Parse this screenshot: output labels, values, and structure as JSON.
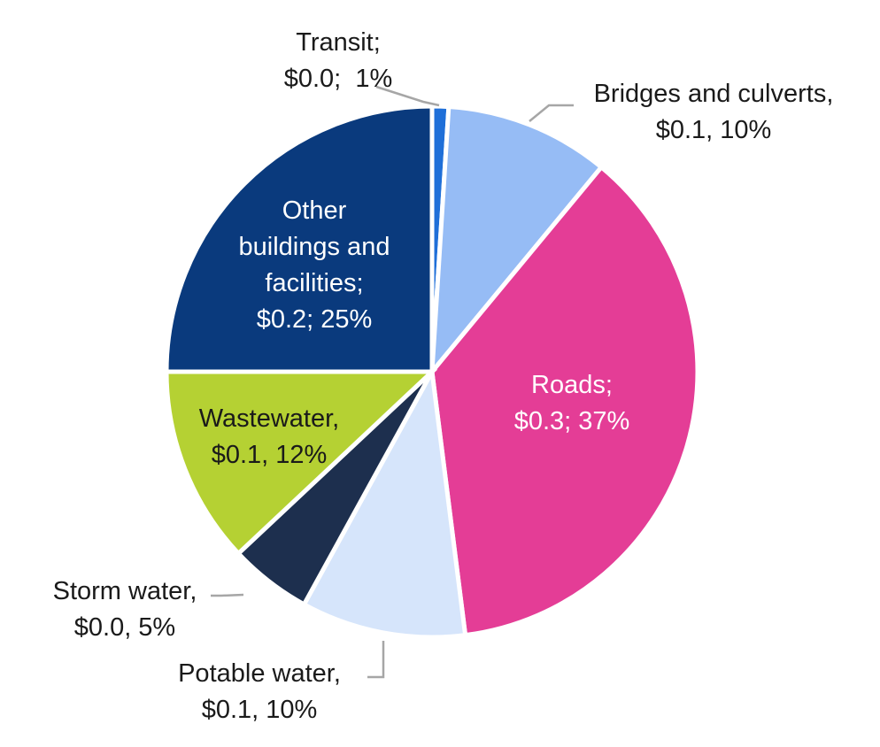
{
  "chart_data": {
    "type": "pie",
    "start_angle_deg": 0,
    "direction": "clockwise",
    "slices": [
      {
        "category": "Transit",
        "value": 0.0,
        "percent": 1,
        "color": "#1f6fd8",
        "label_lines": [
          "Transit;",
          "$0.0;  1%"
        ],
        "label_color": "dark"
      },
      {
        "category": "Bridges and culverts",
        "value": 0.1,
        "percent": 10,
        "color": "#96bcf5",
        "label_lines": [
          "Bridges and culverts,",
          "$0.1, 10%"
        ],
        "label_color": "dark"
      },
      {
        "category": "Roads",
        "value": 0.3,
        "percent": 37,
        "color": "#e43d96",
        "label_lines": [
          "Roads;",
          "$0.3; 37%"
        ],
        "label_color": "light"
      },
      {
        "category": "Potable water",
        "value": 0.1,
        "percent": 10,
        "color": "#d6e5fb",
        "label_lines": [
          "Potable water,",
          "$0.1, 10%"
        ],
        "label_color": "dark"
      },
      {
        "category": "Storm water",
        "value": 0.0,
        "percent": 5,
        "color": "#1d2f4e",
        "label_lines": [
          "Storm water,",
          "$0.0, 5%"
        ],
        "label_color": "dark"
      },
      {
        "category": "Wastewater",
        "value": 0.1,
        "percent": 12,
        "color": "#b5d133",
        "label_lines": [
          "Wastewater,",
          "$0.1, 12%"
        ],
        "label_color": "dark"
      },
      {
        "category": "Other buildings and facilities",
        "value": 0.2,
        "percent": 25,
        "color": "#0a3a7d",
        "label_lines": [
          "Other",
          "buildings and",
          "facilities;",
          "$0.2; 25%"
        ],
        "label_color": "light"
      }
    ]
  }
}
